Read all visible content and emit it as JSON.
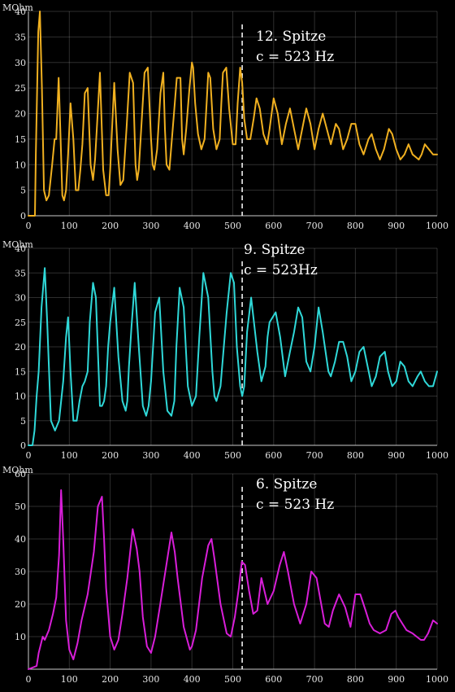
{
  "chart_data": [
    {
      "type": "line",
      "unit_label": "MOhm",
      "annotation": [
        "12. Spitze",
        "c = 523 Hz"
      ],
      "marker_x": 523,
      "color": "#f0b020",
      "xlim": [
        0,
        1000
      ],
      "ylim": [
        0,
        40
      ],
      "xticks": [
        0,
        100,
        200,
        300,
        400,
        500,
        600,
        700,
        800,
        900,
        1000
      ],
      "yticks": [
        0,
        5,
        10,
        15,
        20,
        25,
        30,
        35,
        40
      ],
      "series": [
        {
          "x": [
            0,
            16,
            18,
            24,
            28,
            33,
            38,
            44,
            50,
            58,
            64,
            68,
            74,
            78,
            83,
            87,
            92,
            97,
            103,
            110,
            116,
            122,
            127,
            132,
            138,
            145,
            152,
            158,
            163,
            168,
            175,
            183,
            190,
            196,
            200,
            204,
            210,
            218,
            225,
            232,
            236,
            240,
            248,
            256,
            262,
            266,
            270,
            276,
            284,
            292,
            300,
            304,
            308,
            315,
            323,
            330,
            334,
            338,
            345,
            355,
            363,
            372,
            376,
            380,
            386,
            394,
            400,
            403,
            408,
            415,
            423,
            431,
            436,
            440,
            445,
            452,
            460,
            468,
            472,
            476,
            484,
            491,
            500,
            507,
            512,
            518,
            523,
            528,
            535,
            543,
            551,
            558,
            566,
            575,
            584,
            590,
            600,
            610,
            620,
            630,
            640,
            650,
            660,
            670,
            680,
            690,
            700,
            710,
            720,
            730,
            740,
            752,
            760,
            770,
            780,
            790,
            800,
            810,
            820,
            832,
            840,
            850,
            860,
            870,
            882,
            890,
            900,
            910,
            920,
            930,
            940,
            955,
            962,
            970,
            980,
            990,
            1000
          ],
          "y": [
            0,
            0,
            12,
            36,
            40,
            25,
            5,
            3,
            4,
            10,
            15,
            15,
            27,
            17,
            4,
            3,
            5,
            12,
            22,
            15,
            5,
            5,
            9,
            14,
            24,
            25,
            10,
            7,
            11,
            18,
            28,
            9,
            4,
            4,
            9,
            16,
            26,
            13,
            6,
            7,
            12,
            17,
            28,
            26,
            10,
            7,
            9,
            17,
            28,
            29,
            15,
            10,
            9,
            13,
            24,
            28,
            17,
            10,
            9,
            19,
            27,
            27,
            15,
            12,
            17,
            25,
            30,
            29,
            22,
            16,
            13,
            15,
            22,
            28,
            27,
            17,
            13,
            15,
            22,
            28,
            29,
            21,
            14,
            14,
            22,
            29,
            26,
            19,
            15,
            15,
            19,
            23,
            21,
            16,
            14,
            17,
            23,
            20,
            14,
            18,
            21,
            17,
            13,
            17,
            21,
            18,
            13,
            17,
            20,
            17,
            14,
            18,
            17,
            13,
            15,
            18,
            18,
            14,
            12,
            15,
            16,
            13,
            11,
            13,
            17,
            16,
            13,
            11,
            12,
            14,
            12,
            11,
            12,
            14,
            13,
            12,
            12
          ]
        }
      ]
    },
    {
      "type": "line",
      "unit_label": "MOhm",
      "annotation": [
        "9. Spitze",
        "c = 523Hz"
      ],
      "marker_x": 523,
      "color": "#2fd8d8",
      "xlim": [
        0,
        1000
      ],
      "ylim": [
        0,
        40
      ],
      "xticks": [
        0,
        100,
        200,
        300,
        400,
        500,
        600,
        700,
        800,
        900,
        1000
      ],
      "yticks": [
        0,
        5,
        10,
        15,
        20,
        25,
        30,
        35,
        40
      ],
      "series": [
        {
          "x": [
            0,
            10,
            15,
            20,
            25,
            32,
            40,
            46,
            55,
            65,
            75,
            85,
            92,
            97,
            103,
            110,
            118,
            125,
            132,
            138,
            145,
            150,
            153,
            158,
            165,
            175,
            180,
            185,
            190,
            195,
            200,
            210,
            220,
            230,
            238,
            242,
            246,
            252,
            260,
            270,
            280,
            288,
            294,
            300,
            310,
            320,
            330,
            340,
            350,
            357,
            362,
            370,
            380,
            390,
            400,
            410,
            418,
            428,
            440,
            450,
            455,
            460,
            470,
            485,
            495,
            503,
            510,
            518,
            523,
            528,
            535,
            545,
            560,
            570,
            580,
            585,
            590,
            605,
            616,
            628,
            640,
            650,
            660,
            670,
            680,
            690,
            700,
            710,
            720,
            734,
            740,
            750,
            760,
            770,
            780,
            790,
            800,
            810,
            820,
            830,
            840,
            850,
            860,
            872,
            880,
            890,
            900,
            910,
            920,
            930,
            940,
            952,
            960,
            970,
            980,
            990,
            1000
          ],
          "y": [
            0,
            0,
            3,
            10,
            15,
            28,
            36,
            25,
            5,
            3,
            5,
            13,
            22,
            26,
            15,
            5,
            5,
            9,
            12,
            13,
            15,
            25,
            28,
            33,
            30,
            8,
            8,
            9,
            12,
            20,
            25,
            32,
            18,
            9,
            7,
            9,
            16,
            24,
            33,
            20,
            8,
            6,
            8,
            13,
            27,
            30,
            15,
            7,
            6,
            9,
            20,
            32,
            28,
            12,
            8,
            10,
            22,
            35,
            30,
            15,
            10,
            9,
            12,
            27,
            35,
            33,
            20,
            12,
            10,
            12,
            23,
            30,
            19,
            13,
            16,
            22,
            25,
            27,
            22,
            14,
            19,
            23,
            28,
            26,
            17,
            15,
            20,
            28,
            23,
            15,
            14,
            17,
            21,
            21,
            18,
            13,
            15,
            19,
            20,
            16,
            12,
            14,
            18,
            19,
            15,
            12,
            13,
            17,
            16,
            13,
            12,
            14,
            15,
            13,
            12,
            12,
            15
          ]
        }
      ]
    },
    {
      "type": "line",
      "unit_label": "MOhm",
      "annotation": [
        "6. Spitze",
        "c = 523 Hz"
      ],
      "marker_x": 523,
      "color": "#d81ed8",
      "xlim": [
        0,
        1000
      ],
      "ylim": [
        0,
        60
      ],
      "xticks": [
        0,
        100,
        200,
        300,
        400,
        500,
        600,
        700,
        800,
        900,
        1000
      ],
      "yticks": [
        10,
        20,
        30,
        40,
        50,
        60
      ],
      "series": [
        {
          "x": [
            0,
            20,
            25,
            35,
            40,
            50,
            60,
            68,
            75,
            80,
            85,
            92,
            100,
            110,
            120,
            130,
            145,
            160,
            170,
            180,
            185,
            190,
            200,
            210,
            220,
            230,
            242,
            255,
            265,
            272,
            280,
            290,
            300,
            310,
            320,
            335,
            350,
            358,
            365,
            380,
            395,
            400,
            410,
            425,
            440,
            448,
            455,
            470,
            485,
            495,
            505,
            515,
            522,
            530,
            540,
            550,
            560,
            570,
            585,
            600,
            615,
            625,
            635,
            650,
            665,
            680,
            692,
            705,
            715,
            725,
            735,
            745,
            760,
            775,
            788,
            800,
            812,
            825,
            835,
            845,
            860,
            875,
            888,
            898,
            905,
            915,
            925,
            940,
            950,
            960,
            968,
            978,
            990,
            1000
          ],
          "y": [
            0,
            1,
            5,
            10,
            9,
            12,
            17,
            22,
            35,
            55,
            40,
            15,
            6,
            3,
            8,
            15,
            23,
            36,
            50,
            53,
            40,
            25,
            10,
            6,
            9,
            17,
            28,
            43,
            37,
            30,
            16,
            7,
            5,
            10,
            18,
            30,
            42,
            36,
            28,
            13,
            6,
            7,
            12,
            28,
            38,
            40,
            34,
            20,
            11,
            10,
            16,
            25,
            33,
            32,
            24,
            17,
            18,
            28,
            20,
            24,
            32,
            36,
            30,
            20,
            14,
            20,
            30,
            28,
            21,
            14,
            13,
            18,
            23,
            19,
            13,
            23,
            23,
            18,
            14,
            12,
            11,
            12,
            17,
            18,
            16,
            14,
            12,
            11,
            10,
            9,
            9,
            11,
            15,
            14
          ]
        }
      ]
    }
  ]
}
